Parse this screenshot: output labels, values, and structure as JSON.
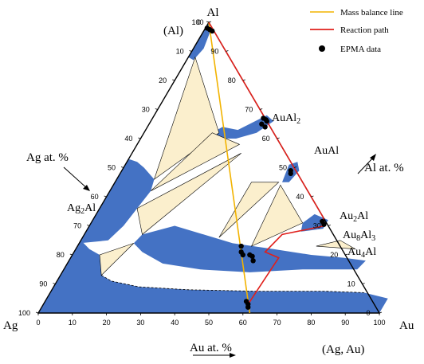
{
  "title_corner_element": "Al",
  "corners": {
    "top": "(Al)",
    "left": "Ag",
    "right": "Au",
    "bottom_right": "(Ag, Au)"
  },
  "axis_titles": {
    "left": "Ag at. %",
    "right": "Al at. %",
    "bottom": "Au at. %"
  },
  "ticks": {
    "bottom": [
      "0",
      "10",
      "20",
      "30",
      "40",
      "50",
      "60",
      "70",
      "80",
      "90",
      "100"
    ],
    "right": [
      "0",
      "10",
      "20",
      "30",
      "40",
      "50",
      "60",
      "70",
      "80",
      "90",
      "100"
    ],
    "left": [
      "0",
      "10",
      "20",
      "30",
      "40",
      "50",
      "60",
      "70",
      "80",
      "90",
      "100"
    ]
  },
  "phase_labels": {
    "aual2": "AuAl2",
    "aual": "AuAl",
    "au2al": "Au2Al",
    "au8al3": "Au8Al3",
    "au4al": "Au4Al",
    "ag2al": "Ag2Al"
  },
  "legend": {
    "mass_balance": "Mass balance line",
    "reaction_path": "Reaction path",
    "epma": "EPMA data"
  },
  "colors": {
    "phase_fill": "#4472C4",
    "tie_fill": "#FBEFCD",
    "mass_balance": "#F2B300",
    "reaction_path": "#E0201B",
    "epma": "#000000"
  },
  "mass_balance_line": [
    {
      "au": 0,
      "al": 100
    },
    {
      "au": 62,
      "al": 0
    }
  ],
  "reaction_path": [
    {
      "au": 0,
      "al": 100
    },
    {
      "au": 33,
      "al": 67
    },
    {
      "au": 50,
      "al": 50
    },
    {
      "au": 67,
      "al": 33
    },
    {
      "au": 69,
      "al": 30
    },
    {
      "au": 58,
      "al": 27
    },
    {
      "au": 56,
      "al": 21
    },
    {
      "au": 61,
      "al": 19
    },
    {
      "au": 60,
      "al": 3
    }
  ],
  "epma_points": [
    {
      "au": 0.5,
      "al": 98
    },
    {
      "au": 1.5,
      "al": 97.5
    },
    {
      "au": 2.5,
      "al": 97
    },
    {
      "au": 32.5,
      "al": 67
    },
    {
      "au": 33.5,
      "al": 66.5
    },
    {
      "au": 34,
      "al": 66
    },
    {
      "au": 33,
      "al": 65
    },
    {
      "au": 34.5,
      "al": 64
    },
    {
      "au": 49.5,
      "al": 49
    },
    {
      "au": 50,
      "al": 48
    },
    {
      "au": 67.5,
      "al": 31.5
    },
    {
      "au": 68.5,
      "al": 30.5
    },
    {
      "au": 48,
      "al": 23
    },
    {
      "au": 49,
      "al": 21
    },
    {
      "au": 50,
      "al": 20
    },
    {
      "au": 52,
      "al": 20
    },
    {
      "au": 53,
      "al": 19.5
    },
    {
      "au": 54,
      "al": 18
    },
    {
      "au": 59,
      "al": 4
    },
    {
      "au": 60,
      "al": 3
    },
    {
      "au": 60.5,
      "al": 2
    }
  ]
}
